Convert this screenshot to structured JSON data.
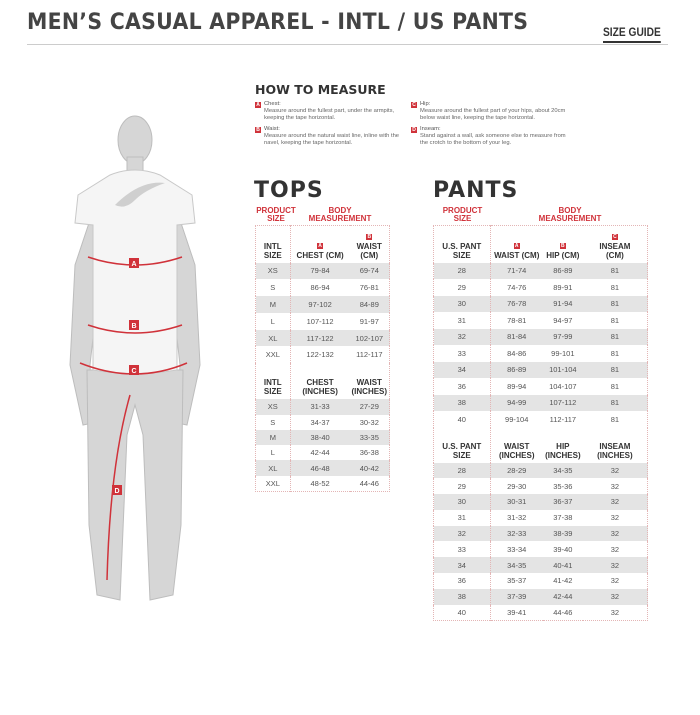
{
  "header": {
    "title": "MEN’S CASUAL APPAREL - INTL / US PANTS",
    "size_guide": "SIZE GUIDE"
  },
  "how_to_measure": {
    "title": "HOW TO MEASURE",
    "items": [
      {
        "badge": "A",
        "label": "Chest:",
        "desc": "Measure around the fullest part, under the armpits, keeping the tape horizontal."
      },
      {
        "badge": "B",
        "label": "Waist:",
        "desc": "Measure around the natural waist line, inline with the navel, keeping the tape horizontal."
      },
      {
        "badge": "C",
        "label": "Hip:",
        "desc": "Measure around the fullest part of your hips, about 20cm below waist line, keeping the tape horizontal."
      },
      {
        "badge": "D",
        "label": "Inseam:",
        "desc": "Stand against a wall, ask someone else to measure from the crotch to the bottom of your leg."
      }
    ]
  },
  "figure": {
    "markers": [
      "A",
      "B",
      "C",
      "D"
    ],
    "accent": "#d0323a"
  },
  "tops": {
    "title": "TOPS",
    "product_size": "PRODUCT SIZE",
    "body_measurement": "BODY MEASUREMENT",
    "badges": [
      "A",
      "B"
    ],
    "cm_headers": [
      "INTL SIZE",
      "CHEST (CM)",
      "WAIST (CM)"
    ],
    "cm_rows": [
      [
        "XS",
        "79-84",
        "69-74"
      ],
      [
        "S",
        "86-94",
        "76-81"
      ],
      [
        "M",
        "97-102",
        "84-89"
      ],
      [
        "L",
        "107-112",
        "91-97"
      ],
      [
        "XL",
        "117-122",
        "102-107"
      ],
      [
        "XXL",
        "122-132",
        "112-117"
      ]
    ],
    "in_headers": [
      "INTL SIZE",
      "CHEST (INCHES)",
      "WAIST (INCHES)"
    ],
    "in_rows": [
      [
        "XS",
        "31-33",
        "27-29"
      ],
      [
        "S",
        "34-37",
        "30-32"
      ],
      [
        "M",
        "38-40",
        "33-35"
      ],
      [
        "L",
        "42-44",
        "36-38"
      ],
      [
        "XL",
        "46-48",
        "40-42"
      ],
      [
        "XXL",
        "48-52",
        "44-46"
      ]
    ]
  },
  "pants": {
    "title": "PANTS",
    "product_size": "PRODUCT SIZE",
    "body_measurement": "BODY MEASUREMENT",
    "badges": [
      "A",
      "B",
      "C"
    ],
    "cm_headers": [
      "U.S. PANT SIZE",
      "WAIST (CM)",
      "HIP (CM)",
      "INSEAM (CM)"
    ],
    "cm_rows": [
      [
        "28",
        "71-74",
        "86-89",
        "81"
      ],
      [
        "29",
        "74-76",
        "89-91",
        "81"
      ],
      [
        "30",
        "76-78",
        "91-94",
        "81"
      ],
      [
        "31",
        "78-81",
        "94-97",
        "81"
      ],
      [
        "32",
        "81-84",
        "97-99",
        "81"
      ],
      [
        "33",
        "84-86",
        "99-101",
        "81"
      ],
      [
        "34",
        "86-89",
        "101-104",
        "81"
      ],
      [
        "36",
        "89-94",
        "104-107",
        "81"
      ],
      [
        "38",
        "94-99",
        "107-112",
        "81"
      ],
      [
        "40",
        "99-104",
        "112-117",
        "81"
      ]
    ],
    "in_headers": [
      "U.S. PANT SIZE",
      "WAIST (INCHES)",
      "HIP (INCHES)",
      "INSEAM (INCHES)"
    ],
    "in_rows": [
      [
        "28",
        "28-29",
        "34-35",
        "32"
      ],
      [
        "29",
        "29-30",
        "35-36",
        "32"
      ],
      [
        "30",
        "30-31",
        "36-37",
        "32"
      ],
      [
        "31",
        "31-32",
        "37-38",
        "32"
      ],
      [
        "32",
        "32-33",
        "38-39",
        "32"
      ],
      [
        "33",
        "33-34",
        "39-40",
        "32"
      ],
      [
        "34",
        "34-35",
        "40-41",
        "32"
      ],
      [
        "36",
        "35-37",
        "41-42",
        "32"
      ],
      [
        "38",
        "37-39",
        "42-44",
        "32"
      ],
      [
        "40",
        "39-41",
        "44-46",
        "32"
      ]
    ]
  }
}
